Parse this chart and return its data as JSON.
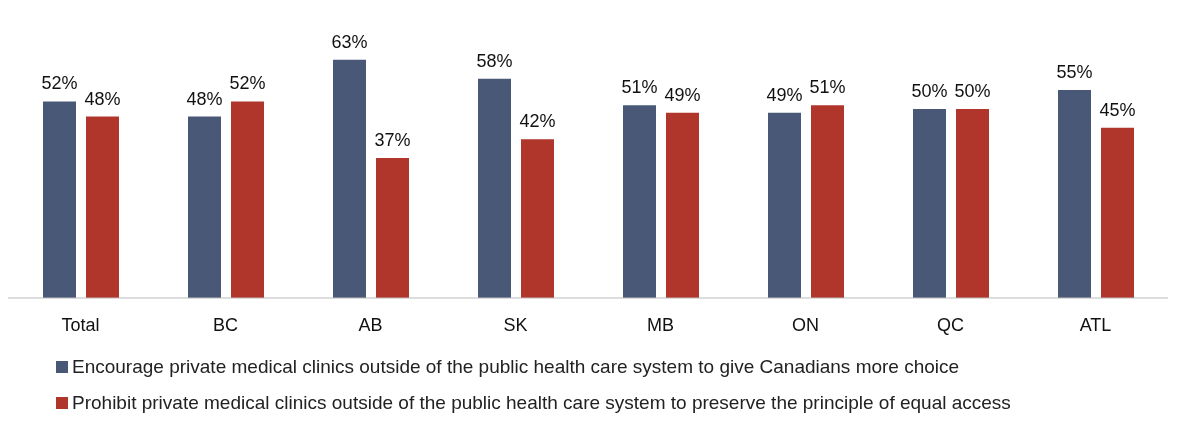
{
  "chart_data": {
    "type": "bar",
    "categories": [
      "Total",
      "BC",
      "AB",
      "SK",
      "MB",
      "ON",
      "QC",
      "ATL"
    ],
    "series": [
      {
        "name": "Encourage private medical clinics outside of the public health care system to give Canadians more choice",
        "color": "#4a5878",
        "values": [
          52,
          48,
          63,
          58,
          51,
          49,
          50,
          55
        ],
        "value_labels": [
          "52%",
          "48%",
          "63%",
          "58%",
          "51%",
          "49%",
          "50%",
          "55%"
        ]
      },
      {
        "name": "Prohibit private medical clinics outside of the public health care system to preserve the principle of equal access",
        "color": "#b0352b",
        "values": [
          48,
          52,
          37,
          42,
          49,
          51,
          50,
          45
        ],
        "value_labels": [
          "48%",
          "52%",
          "37%",
          "42%",
          "49%",
          "51%",
          "50%",
          "45%"
        ]
      }
    ],
    "legend": "bottom",
    "grid": false
  }
}
